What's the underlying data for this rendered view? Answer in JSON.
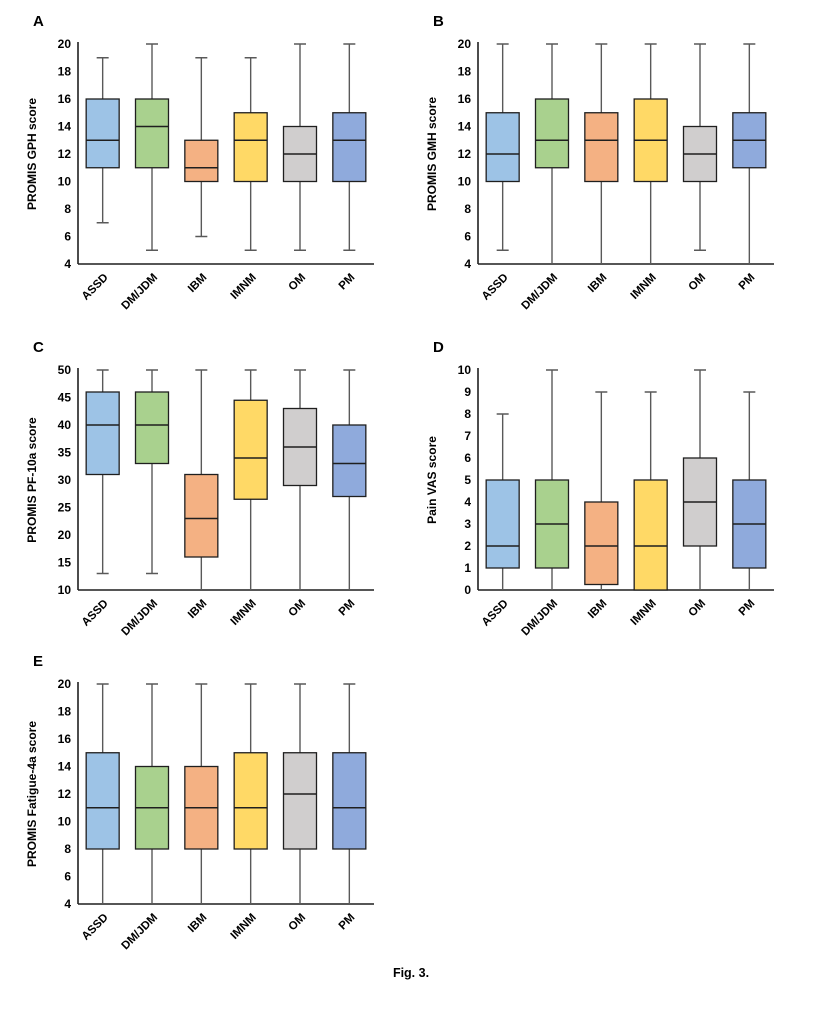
{
  "page": {
    "caption": "Fig. 3.",
    "background": "#ffffff"
  },
  "palette": {
    "box_fills": [
      "#9DC3E6",
      "#A9D18E",
      "#F4B183",
      "#FFD966",
      "#D0CECE",
      "#8FAADC"
    ],
    "box_border": "#1F1F1F",
    "whisker": "#595959",
    "axis": "#1F1F1F",
    "text": "#000000"
  },
  "chart_data": [
    {
      "type": "box",
      "panel": "A",
      "title": "",
      "ylabel": "PROMIS GPH score",
      "xlabel": "",
      "ylim": [
        4,
        20
      ],
      "ytick_step": 2,
      "grid": false,
      "legend": "none",
      "categories": [
        "ASSD",
        "DM/JDM",
        "IBM",
        "IMNM",
        "OM",
        "PM"
      ],
      "series": [
        {
          "name": "ASSD",
          "whislo": 7,
          "q1": 11,
          "med": 13,
          "q3": 16,
          "whishi": 19
        },
        {
          "name": "DM/JDM",
          "whislo": 5,
          "q1": 11,
          "med": 14,
          "q3": 16,
          "whishi": 20
        },
        {
          "name": "IBM",
          "whislo": 6,
          "q1": 10,
          "med": 11,
          "q3": 13,
          "whishi": 19
        },
        {
          "name": "IMNM",
          "whislo": 5,
          "q1": 10,
          "med": 13,
          "q3": 15,
          "whishi": 19
        },
        {
          "name": "OM",
          "whislo": 5,
          "q1": 10,
          "med": 12,
          "q3": 14,
          "whishi": 20
        },
        {
          "name": "PM",
          "whislo": 5,
          "q1": 10,
          "med": 13,
          "q3": 15,
          "whishi": 20
        }
      ]
    },
    {
      "type": "box",
      "panel": "B",
      "title": "",
      "ylabel": "PROMIS GMH score",
      "xlabel": "",
      "ylim": [
        4,
        20
      ],
      "ytick_step": 2,
      "grid": false,
      "legend": "none",
      "categories": [
        "ASSD",
        "DM/JDM",
        "IBM",
        "IMNM",
        "OM",
        "PM"
      ],
      "series": [
        {
          "name": "ASSD",
          "whislo": 5,
          "q1": 10,
          "med": 12,
          "q3": 15,
          "whishi": 20
        },
        {
          "name": "DM/JDM",
          "whislo": 4,
          "q1": 11,
          "med": 13,
          "q3": 16,
          "whishi": 20
        },
        {
          "name": "IBM",
          "whislo": 4,
          "q1": 10,
          "med": 13,
          "q3": 15,
          "whishi": 20
        },
        {
          "name": "IMNM",
          "whislo": 4,
          "q1": 10,
          "med": 13,
          "q3": 16,
          "whishi": 20
        },
        {
          "name": "OM",
          "whislo": 5,
          "q1": 10,
          "med": 12,
          "q3": 14,
          "whishi": 20
        },
        {
          "name": "PM",
          "whislo": 4,
          "q1": 11,
          "med": 13,
          "q3": 15,
          "whishi": 20
        }
      ]
    },
    {
      "type": "box",
      "panel": "C",
      "title": "",
      "ylabel": "PROMIS PF-10a score",
      "xlabel": "",
      "ylim": [
        10,
        50
      ],
      "ytick_step": 5,
      "grid": false,
      "legend": "none",
      "categories": [
        "ASSD",
        "DM/JDM",
        "IBM",
        "IMNM",
        "OM",
        "PM"
      ],
      "series": [
        {
          "name": "ASSD",
          "whislo": 13,
          "q1": 31,
          "med": 40,
          "q3": 46,
          "whishi": 50
        },
        {
          "name": "DM/JDM",
          "whislo": 13,
          "q1": 33,
          "med": 40,
          "q3": 46,
          "whishi": 50
        },
        {
          "name": "IBM",
          "whislo": 10,
          "q1": 16,
          "med": 23,
          "q3": 31,
          "whishi": 50
        },
        {
          "name": "IMNM",
          "whislo": 10,
          "q1": 26.5,
          "med": 34,
          "q3": 44.5,
          "whishi": 50
        },
        {
          "name": "OM",
          "whislo": 10,
          "q1": 29,
          "med": 36,
          "q3": 43,
          "whishi": 50
        },
        {
          "name": "PM",
          "whislo": 10,
          "q1": 27,
          "med": 33,
          "q3": 40,
          "whishi": 50
        }
      ]
    },
    {
      "type": "box",
      "panel": "D",
      "title": "",
      "ylabel": "Pain VAS score",
      "xlabel": "",
      "ylim": [
        0,
        10
      ],
      "ytick_step": 1,
      "grid": false,
      "legend": "none",
      "categories": [
        "ASSD",
        "DM/JDM",
        "IBM",
        "IMNM",
        "OM",
        "PM"
      ],
      "series": [
        {
          "name": "ASSD",
          "whislo": 0,
          "q1": 1,
          "med": 2,
          "q3": 5,
          "whishi": 8
        },
        {
          "name": "DM/JDM",
          "whislo": 0,
          "q1": 1,
          "med": 3,
          "q3": 5,
          "whishi": 10
        },
        {
          "name": "IBM",
          "whislo": 0,
          "q1": 0.25,
          "med": 2,
          "q3": 4,
          "whishi": 9
        },
        {
          "name": "IMNM",
          "whislo": 0,
          "q1": 0,
          "med": 2,
          "q3": 5,
          "whishi": 9
        },
        {
          "name": "OM",
          "whislo": 0,
          "q1": 2,
          "med": 4,
          "q3": 6,
          "whishi": 10
        },
        {
          "name": "PM",
          "whislo": 0,
          "q1": 1,
          "med": 3,
          "q3": 5,
          "whishi": 9
        }
      ]
    },
    {
      "type": "box",
      "panel": "E",
      "title": "",
      "ylabel": "PROMIS Fatigue-4a score",
      "xlabel": "",
      "ylim": [
        4,
        20
      ],
      "ytick_step": 2,
      "grid": false,
      "legend": "none",
      "categories": [
        "ASSD",
        "DM/JDM",
        "IBM",
        "IMNM",
        "OM",
        "PM"
      ],
      "series": [
        {
          "name": "ASSD",
          "whislo": 4,
          "q1": 8,
          "med": 11,
          "q3": 15,
          "whishi": 20
        },
        {
          "name": "DM/JDM",
          "whislo": 4,
          "q1": 8,
          "med": 11,
          "q3": 14,
          "whishi": 20
        },
        {
          "name": "IBM",
          "whislo": 4,
          "q1": 8,
          "med": 11,
          "q3": 14,
          "whishi": 20
        },
        {
          "name": "IMNM",
          "whislo": 4,
          "q1": 8,
          "med": 11,
          "q3": 15,
          "whishi": 20
        },
        {
          "name": "OM",
          "whislo": 4,
          "q1": 8,
          "med": 12,
          "q3": 15,
          "whishi": 20
        },
        {
          "name": "PM",
          "whislo": 4,
          "q1": 8,
          "med": 11,
          "q3": 15,
          "whishi": 20
        }
      ]
    }
  ]
}
